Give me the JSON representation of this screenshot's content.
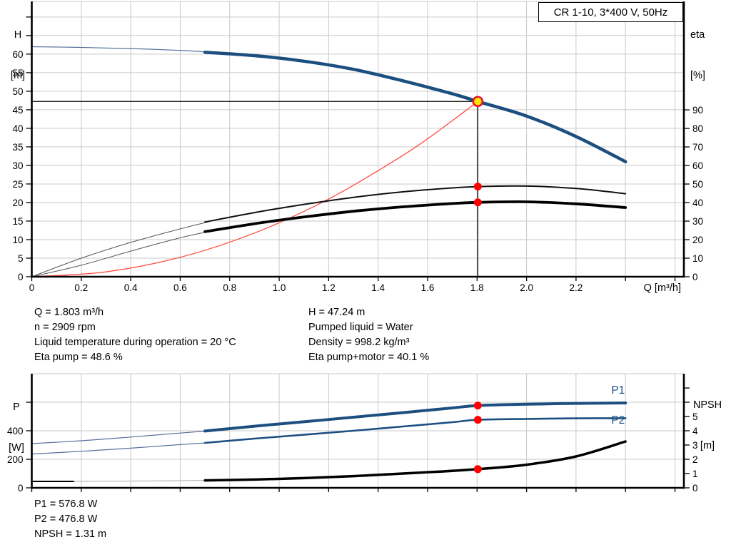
{
  "title_box": {
    "label": "CR 1-10, 3*400 V, 50Hz"
  },
  "info_top": {
    "left": [
      "Q = 1.803 m³/h",
      "n = 2909 rpm",
      "Liquid temperature during operation = 20 °C",
      "Eta pump = 48.6 %"
    ],
    "right": [
      "H = 47.24 m",
      "Pumped liquid = Water",
      "Density = 998.2 kg/m³",
      "Eta pump+motor = 40.1 %"
    ]
  },
  "info_bottom": {
    "lines": [
      "P1 = 576.8 W",
      "P2 = 476.8 W",
      "NPSH = 1.31 m"
    ]
  },
  "colors": {
    "curve_blue": "#1c4f80",
    "curve_blue_thin": "#54719a",
    "system_red": "#ff4d40",
    "dot_red": "#fe0000",
    "duty_yellow": "#ffe600",
    "grid": "#c9c9c9",
    "axis": "#000000"
  },
  "chart_data": [
    {
      "type": "line",
      "title": "CR 1-10, 3*400 V, 50Hz",
      "x_axis": {
        "label": "Q [m³/h]",
        "min": 0,
        "max": 2.636,
        "tick_step": 0.2,
        "tick_max": 2.6,
        "label_max": 2.2,
        "grid": true
      },
      "y_left": {
        "label": "H",
        "unit": "[m]",
        "min": 0,
        "max": 74.2,
        "tick_step": 5,
        "tick_max": 70,
        "label_max": 60,
        "grid": true
      },
      "y_right": {
        "label": "eta",
        "unit": "[%]",
        "min": 0,
        "max": 148.5,
        "tick_step": 10,
        "tick_max": 90,
        "label_max": 90,
        "grid": false
      },
      "crosshair": {
        "q": 1.803,
        "h": 47.24
      },
      "series": [
        {
          "name": "head-curve-low-flow",
          "axis": "left",
          "color": "#54719a",
          "width": 1.2,
          "points": [
            [
              0,
              62.0
            ],
            [
              0.2,
              61.8
            ],
            [
              0.4,
              61.5
            ],
            [
              0.6,
              61.0
            ],
            [
              0.72,
              60.5
            ]
          ]
        },
        {
          "name": "head-curve",
          "axis": "left",
          "color": "#1c4f80",
          "width": 4.5,
          "points": [
            [
              0.7,
              60.5
            ],
            [
              0.9,
              59.6
            ],
            [
              1.1,
              58.1
            ],
            [
              1.3,
              55.9
            ],
            [
              1.5,
              52.8
            ],
            [
              1.7,
              49.3
            ],
            [
              1.803,
              47.24
            ],
            [
              2.0,
              43.3
            ],
            [
              2.2,
              37.8
            ],
            [
              2.4,
              31.0
            ]
          ]
        },
        {
          "name": "system-curve",
          "axis": "left",
          "color": "#ff4d40",
          "width": 1.3,
          "points": [
            [
              0,
              0
            ],
            [
              0.3,
              1.31
            ],
            [
              0.6,
              5.23
            ],
            [
              0.9,
              11.77
            ],
            [
              1.2,
              20.93
            ],
            [
              1.5,
              32.7
            ],
            [
              1.65,
              39.6
            ],
            [
              1.803,
              47.24
            ]
          ]
        },
        {
          "name": "eta-pump-low-flow",
          "axis": "right",
          "color": "#555555",
          "width": 1,
          "points": [
            [
              0,
              0
            ],
            [
              0.2,
              10.0
            ],
            [
              0.4,
              18.5
            ],
            [
              0.6,
              25.8
            ],
            [
              0.72,
              29.8
            ]
          ]
        },
        {
          "name": "eta-pump",
          "axis": "right",
          "color": "#111111",
          "width": 2,
          "points": [
            [
              0.7,
              29.5
            ],
            [
              0.9,
              34.6
            ],
            [
              1.1,
              39.0
            ],
            [
              1.3,
              42.8
            ],
            [
              1.5,
              45.8
            ],
            [
              1.7,
              47.9
            ],
            [
              1.803,
              48.6
            ],
            [
              2.0,
              48.9
            ],
            [
              2.2,
              47.6
            ],
            [
              2.4,
              44.8
            ]
          ]
        },
        {
          "name": "eta-pump-motor-low-flow",
          "axis": "right",
          "color": "#555555",
          "width": 1,
          "points": [
            [
              0,
              0
            ],
            [
              0.2,
              6.2
            ],
            [
              0.4,
              13.8
            ],
            [
              0.6,
              21.0
            ],
            [
              0.72,
              24.5
            ]
          ]
        },
        {
          "name": "eta-pump-motor",
          "axis": "right",
          "color": "#000000",
          "width": 3.8,
          "points": [
            [
              0.7,
              24.3
            ],
            [
              0.9,
              28.6
            ],
            [
              1.1,
              32.2
            ],
            [
              1.3,
              35.3
            ],
            [
              1.5,
              37.7
            ],
            [
              1.7,
              39.5
            ],
            [
              1.803,
              40.1
            ],
            [
              2.0,
              40.4
            ],
            [
              2.2,
              39.3
            ],
            [
              2.4,
              37.3
            ]
          ]
        }
      ],
      "markers": [
        {
          "name": "duty-point",
          "q": 1.803,
          "value": 47.24,
          "axis": "left",
          "style": "duty"
        },
        {
          "name": "eta-pump-point",
          "q": 1.803,
          "value": 48.6,
          "axis": "right",
          "style": "dot"
        },
        {
          "name": "eta-pump-motor-point",
          "q": 1.803,
          "value": 40.1,
          "axis": "right",
          "style": "dot"
        }
      ],
      "annotations": []
    },
    {
      "type": "line",
      "title": "",
      "x_axis": {
        "label": "",
        "min": 0,
        "max": 2.636,
        "tick_step": 0.2,
        "tick_max": 2.6,
        "label_max": -1,
        "grid": true
      },
      "y_left": {
        "label": "P",
        "unit": "[W]",
        "min": 0,
        "max": 800,
        "tick_step": 200,
        "tick_max": 600,
        "label_max": 400,
        "grid": true
      },
      "y_right": {
        "label": "NPSH",
        "unit": "[m]",
        "min": 0,
        "max": 8,
        "tick_step": 1,
        "tick_max": 7,
        "label_max": 5,
        "grid": false
      },
      "series": [
        {
          "name": "p1-low-flow",
          "axis": "left",
          "color": "#54719a",
          "width": 1.2,
          "points": [
            [
              0,
              310
            ],
            [
              0.2,
              330
            ],
            [
              0.4,
              356
            ],
            [
              0.6,
              384
            ],
            [
              0.72,
              400
            ]
          ]
        },
        {
          "name": "p1-curve",
          "axis": "left",
          "color": "#1c4f80",
          "width": 4,
          "points": [
            [
              0.7,
              398
            ],
            [
              0.9,
              432
            ],
            [
              1.1,
              463
            ],
            [
              1.3,
              495
            ],
            [
              1.5,
              527
            ],
            [
              1.7,
              560
            ],
            [
              1.803,
              576.8
            ],
            [
              2.0,
              586
            ],
            [
              2.2,
              592
            ],
            [
              2.4,
              595
            ]
          ]
        },
        {
          "name": "p2-low-flow",
          "axis": "left",
          "color": "#54719a",
          "width": 1.2,
          "points": [
            [
              0,
              237
            ],
            [
              0.2,
              256
            ],
            [
              0.4,
              278
            ],
            [
              0.6,
              303
            ],
            [
              0.72,
              317
            ]
          ]
        },
        {
          "name": "p2-curve",
          "axis": "left",
          "color": "#1c4f80",
          "width": 2.6,
          "points": [
            [
              0.7,
              315
            ],
            [
              0.9,
              345
            ],
            [
              1.1,
              372
            ],
            [
              1.3,
              400
            ],
            [
              1.5,
              430
            ],
            [
              1.7,
              460
            ],
            [
              1.803,
              476.8
            ],
            [
              2.0,
              483
            ],
            [
              2.2,
              487
            ],
            [
              2.4,
              488
            ]
          ]
        },
        {
          "name": "npsh-start",
          "axis": "right",
          "color": "#000000",
          "width": 2,
          "points": [
            [
              0,
              0.45
            ],
            [
              0.17,
              0.45
            ]
          ]
        },
        {
          "name": "npsh-low-flow",
          "axis": "right",
          "color": "#aaaaaa",
          "width": 1,
          "points": [
            [
              0.17,
              0.45
            ],
            [
              0.45,
              0.48
            ],
            [
              0.72,
              0.52
            ]
          ]
        },
        {
          "name": "npsh-curve",
          "axis": "right",
          "color": "#000000",
          "width": 3.5,
          "points": [
            [
              0.7,
              0.52
            ],
            [
              0.9,
              0.58
            ],
            [
              1.1,
              0.68
            ],
            [
              1.3,
              0.82
            ],
            [
              1.5,
              1.0
            ],
            [
              1.65,
              1.14
            ],
            [
              1.803,
              1.31
            ],
            [
              2.0,
              1.62
            ],
            [
              2.2,
              2.2
            ],
            [
              2.4,
              3.25
            ]
          ]
        }
      ],
      "markers": [
        {
          "name": "p1-point",
          "q": 1.803,
          "value": 576.8,
          "axis": "left",
          "style": "dot"
        },
        {
          "name": "p2-point",
          "q": 1.803,
          "value": 476.8,
          "axis": "left",
          "style": "dot"
        },
        {
          "name": "npsh-point",
          "q": 1.803,
          "value": 1.31,
          "axis": "right",
          "style": "dot"
        }
      ],
      "annotations": [
        {
          "text": "P1",
          "q": 2.37,
          "value": 660,
          "axis": "left",
          "color": "#1c4f80"
        },
        {
          "text": "P2",
          "q": 2.37,
          "value": 450,
          "axis": "left",
          "color": "#1c4f80"
        }
      ]
    }
  ]
}
